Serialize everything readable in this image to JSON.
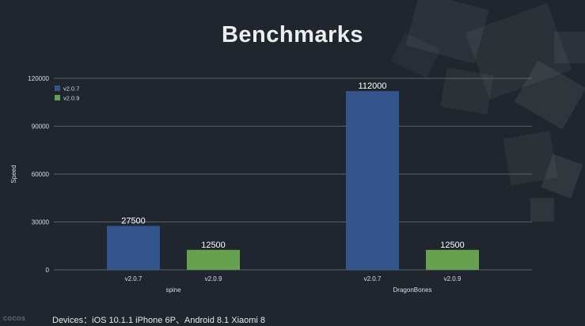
{
  "slide": {
    "title": "Benchmarks",
    "footer": "Devices：iOS 10.1.1 iPhone 6P、Android 8.1 Xiaomi 8",
    "logo_text": "COCOS"
  },
  "colors": {
    "background": "#1f262d",
    "v207": "#34558c",
    "v209": "#65a14e",
    "grid": "#5a6068",
    "text": "#eeeeee"
  },
  "chart_data": {
    "type": "bar",
    "ylabel": "Speed",
    "ylim": [
      0,
      120000
    ],
    "yticks": [
      0,
      30000,
      60000,
      90000,
      120000
    ],
    "grid": true,
    "legend_position": "top-left",
    "groups": [
      {
        "name": "spine",
        "bars": [
          {
            "series": "v2.0.7",
            "label": "v2.0.7",
            "value": 27500
          },
          {
            "series": "v2.0.9",
            "label": "v2.0.9",
            "value": 12500
          }
        ]
      },
      {
        "name": "DragonBones",
        "bars": [
          {
            "series": "v2.0.7",
            "label": "v2.0.7",
            "value": 112000
          },
          {
            "series": "v2.0.9",
            "label": "v2.0.9",
            "value": 12500
          }
        ]
      }
    ],
    "series": [
      {
        "name": "v2.0.7",
        "values": [
          27500,
          112000
        ]
      },
      {
        "name": "v2.0.9",
        "values": [
          12500,
          12500
        ]
      }
    ]
  }
}
